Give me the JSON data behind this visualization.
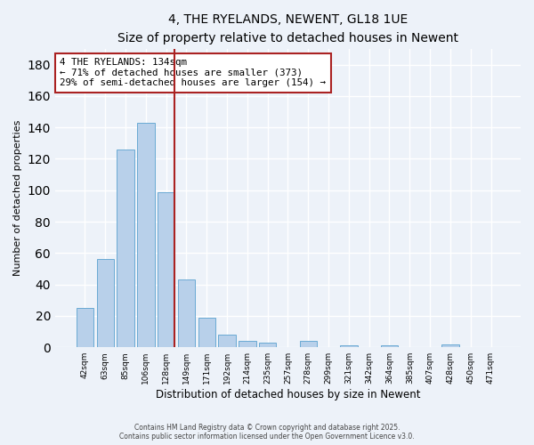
{
  "title": "4, THE RYELANDS, NEWENT, GL18 1UE",
  "subtitle": "Size of property relative to detached houses in Newent",
  "xlabel": "Distribution of detached houses by size in Newent",
  "ylabel": "Number of detached properties",
  "categories": [
    "42sqm",
    "63sqm",
    "85sqm",
    "106sqm",
    "128sqm",
    "149sqm",
    "171sqm",
    "192sqm",
    "214sqm",
    "235sqm",
    "257sqm",
    "278sqm",
    "299sqm",
    "321sqm",
    "342sqm",
    "364sqm",
    "385sqm",
    "407sqm",
    "428sqm",
    "450sqm",
    "471sqm"
  ],
  "values": [
    25,
    56,
    126,
    143,
    99,
    43,
    19,
    8,
    4,
    3,
    0,
    4,
    0,
    1,
    0,
    1,
    0,
    0,
    2,
    0,
    0
  ],
  "bar_color": "#b8d0ea",
  "bar_edge_color": "#6aaad4",
  "highlight_index": 4,
  "highlight_color": "#aa2222",
  "annotation_title": "4 THE RYELANDS: 134sqm",
  "annotation_line1": "← 71% of detached houses are smaller (373)",
  "annotation_line2": "29% of semi-detached houses are larger (154) →",
  "annotation_box_color": "#ffffff",
  "annotation_box_edge_color": "#aa2222",
  "ylim": [
    0,
    190
  ],
  "yticks": [
    0,
    20,
    40,
    60,
    80,
    100,
    120,
    140,
    160,
    180
  ],
  "footer_line1": "Contains HM Land Registry data © Crown copyright and database right 2025.",
  "footer_line2": "Contains public sector information licensed under the Open Government Licence v3.0.",
  "background_color": "#edf2f9"
}
